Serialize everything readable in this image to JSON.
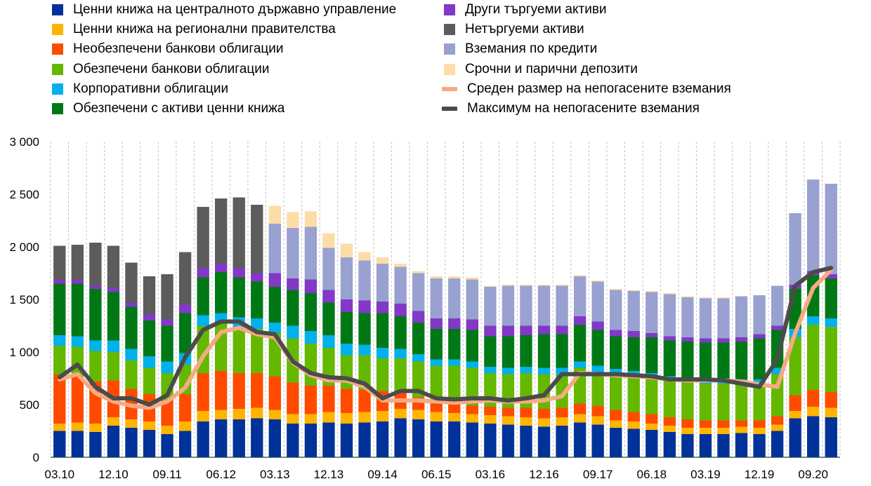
{
  "chart_data": {
    "type": "bar",
    "stacked": true,
    "title": "",
    "xlabel": "",
    "ylabel": "",
    "ylim": [
      0,
      3000
    ],
    "yticks": [
      0,
      500,
      1000,
      1500,
      2000,
      2500,
      3000
    ],
    "ytick_labels": [
      "0",
      "500",
      "1 000",
      "1 500",
      "2 000",
      "2 500",
      "3 000"
    ],
    "categories": [
      "03.10",
      "06.10",
      "09.10",
      "12.10",
      "03.11",
      "06.11",
      "09.11",
      "12.11",
      "03.12",
      "06.12",
      "09.12",
      "12.12",
      "03.13",
      "06.13",
      "09.13",
      "12.13",
      "03.14",
      "06.14",
      "09.14",
      "12.14",
      "03.15",
      "06.15",
      "09.15",
      "12.15",
      "03.16",
      "06.16",
      "09.16",
      "12.16",
      "03.17",
      "06.17",
      "09.17",
      "12.17",
      "03.18",
      "06.18",
      "09.18",
      "12.18",
      "03.19",
      "06.19",
      "09.19",
      "12.19",
      "03.20",
      "06.20",
      "09.20",
      "12.20"
    ],
    "xtick_labels": [
      {
        "index": 0,
        "label": "03.10"
      },
      {
        "index": 3,
        "label": "12.10"
      },
      {
        "index": 6,
        "label": "09.11"
      },
      {
        "index": 9,
        "label": "06.12"
      },
      {
        "index": 12,
        "label": "03.13"
      },
      {
        "index": 15,
        "label": "12.13"
      },
      {
        "index": 18,
        "label": "09.14"
      },
      {
        "index": 21,
        "label": "06.15"
      },
      {
        "index": 24,
        "label": "03.16"
      },
      {
        "index": 27,
        "label": "12.16"
      },
      {
        "index": 30,
        "label": "09.17"
      },
      {
        "index": 33,
        "label": "06.18"
      },
      {
        "index": 36,
        "label": "03.19"
      },
      {
        "index": 39,
        "label": "12.19"
      },
      {
        "index": 42,
        "label": "09.20"
      }
    ],
    "series": [
      {
        "name": "Ценни книжа на централното държавно управление",
        "color": "#003299",
        "kind": "bar",
        "values": [
          250,
          250,
          240,
          300,
          280,
          260,
          220,
          250,
          340,
          360,
          360,
          370,
          360,
          320,
          320,
          330,
          320,
          330,
          340,
          370,
          360,
          340,
          340,
          330,
          320,
          310,
          300,
          290,
          300,
          330,
          310,
          280,
          270,
          260,
          240,
          220,
          220,
          220,
          230,
          220,
          250,
          370,
          390,
          380
        ]
      },
      {
        "name": "Ценни книжа на регионални правителства",
        "color": "#FFB400",
        "kind": "bar",
        "values": [
          70,
          80,
          80,
          80,
          80,
          80,
          80,
          90,
          100,
          90,
          100,
          100,
          90,
          90,
          90,
          100,
          100,
          100,
          100,
          90,
          90,
          90,
          80,
          80,
          80,
          80,
          80,
          80,
          80,
          80,
          80,
          70,
          70,
          60,
          60,
          60,
          60,
          60,
          60,
          60,
          60,
          70,
          90,
          90
        ]
      },
      {
        "name": "Необезпечени банкови облигации",
        "color": "#FF4B00",
        "kind": "bar",
        "values": [
          470,
          440,
          400,
          350,
          290,
          260,
          240,
          260,
          360,
          370,
          340,
          330,
          320,
          300,
          270,
          250,
          230,
          210,
          190,
          160,
          120,
          100,
          90,
          80,
          80,
          80,
          90,
          90,
          90,
          100,
          100,
          100,
          90,
          90,
          80,
          80,
          70,
          70,
          60,
          70,
          80,
          150,
          160,
          150
        ]
      },
      {
        "name": "Обезпечени банкови облигации",
        "color": "#65B800",
        "kind": "bar",
        "values": [
          270,
          280,
          290,
          270,
          270,
          250,
          260,
          280,
          450,
          460,
          430,
          420,
          410,
          420,
          400,
          360,
          320,
          330,
          310,
          320,
          340,
          340,
          360,
          360,
          320,
          320,
          330,
          330,
          320,
          340,
          320,
          340,
          340,
          340,
          350,
          350,
          350,
          350,
          350,
          350,
          400,
          550,
          620,
          620
        ]
      },
      {
        "name": "Корпоративни облигации",
        "color": "#00B1EA",
        "kind": "bar",
        "values": [
          100,
          100,
          100,
          110,
          110,
          110,
          110,
          110,
          100,
          90,
          100,
          100,
          100,
          120,
          120,
          120,
          110,
          100,
          100,
          90,
          70,
          60,
          60,
          60,
          60,
          60,
          60,
          60,
          60,
          60,
          60,
          50,
          50,
          50,
          40,
          40,
          40,
          40,
          40,
          40,
          60,
          80,
          80,
          80
        ]
      },
      {
        "name": "Обезпечени с активи ценни книжа",
        "color": "#007816",
        "kind": "bar",
        "values": [
          490,
          500,
          490,
          460,
          400,
          340,
          340,
          380,
          360,
          390,
          380,
          350,
          340,
          340,
          360,
          310,
          300,
          300,
          330,
          310,
          300,
          290,
          290,
          300,
          290,
          300,
          300,
          320,
          320,
          350,
          340,
          310,
          320,
          340,
          340,
          350,
          350,
          350,
          360,
          390,
          360,
          380,
          390,
          380
        ]
      },
      {
        "name": "Други търгуеми активи",
        "color": "#8139C6",
        "kind": "bar",
        "values": [
          40,
          40,
          30,
          40,
          40,
          60,
          60,
          80,
          90,
          80,
          90,
          80,
          130,
          110,
          130,
          120,
          120,
          120,
          110,
          120,
          110,
          100,
          100,
          100,
          100,
          100,
          90,
          80,
          80,
          80,
          80,
          60,
          60,
          40,
          40,
          40,
          40,
          40,
          40,
          40,
          40,
          40,
          40,
          40
        ]
      },
      {
        "name": "Нетъргуеми активи",
        "color": "#5C5C5C",
        "kind": "bar",
        "values": [
          320,
          330,
          410,
          400,
          380,
          360,
          430,
          500,
          580,
          620,
          670,
          650,
          0,
          0,
          0,
          0,
          0,
          0,
          0,
          0,
          0,
          0,
          0,
          0,
          0,
          0,
          0,
          0,
          0,
          0,
          0,
          0,
          0,
          0,
          0,
          0,
          0,
          0,
          0,
          0,
          0,
          0,
          0,
          0
        ]
      },
      {
        "name": "Вземания по кредити",
        "color": "#98A1D0",
        "kind": "bar",
        "values": [
          0,
          0,
          0,
          0,
          0,
          0,
          0,
          0,
          0,
          0,
          0,
          0,
          470,
          480,
          500,
          400,
          400,
          380,
          360,
          350,
          360,
          380,
          380,
          380,
          370,
          380,
          380,
          380,
          380,
          380,
          380,
          380,
          380,
          390,
          400,
          380,
          380,
          380,
          390,
          370,
          380,
          680,
          870,
          860
        ]
      },
      {
        "name": "Срочни и парични депозити",
        "color": "#FDDDA7",
        "kind": "bar",
        "values": [
          0,
          0,
          0,
          0,
          0,
          0,
          0,
          0,
          0,
          0,
          0,
          0,
          170,
          150,
          150,
          140,
          130,
          80,
          60,
          30,
          20,
          20,
          20,
          20,
          10,
          10,
          10,
          10,
          10,
          10,
          10,
          10,
          10,
          10,
          10,
          10,
          10,
          10,
          0,
          0,
          0,
          0,
          0,
          0
        ]
      },
      {
        "name": "Среден размер на непогасените вземания",
        "color": "#F5AA82",
        "kind": "line",
        "values": [
          740,
          790,
          610,
          530,
          490,
          470,
          530,
          660,
          960,
          1190,
          1230,
          1170,
          1140,
          900,
          780,
          730,
          730,
          670,
          540,
          540,
          540,
          530,
          520,
          530,
          540,
          530,
          530,
          540,
          580,
          800,
          790,
          780,
          770,
          760,
          740,
          730,
          730,
          730,
          720,
          690,
          670,
          1180,
          1610,
          1780
        ]
      },
      {
        "name": "Максимум на непогасените вземания",
        "color": "#4B4B4B",
        "kind": "line",
        "values": [
          760,
          880,
          670,
          560,
          560,
          500,
          590,
          950,
          1210,
          1290,
          1290,
          1190,
          1170,
          910,
          800,
          760,
          750,
          700,
          560,
          630,
          630,
          560,
          550,
          560,
          560,
          540,
          560,
          590,
          790,
          790,
          790,
          790,
          780,
          770,
          740,
          740,
          740,
          730,
          700,
          670,
          930,
          1630,
          1760,
          1800
        ]
      }
    ]
  }
}
